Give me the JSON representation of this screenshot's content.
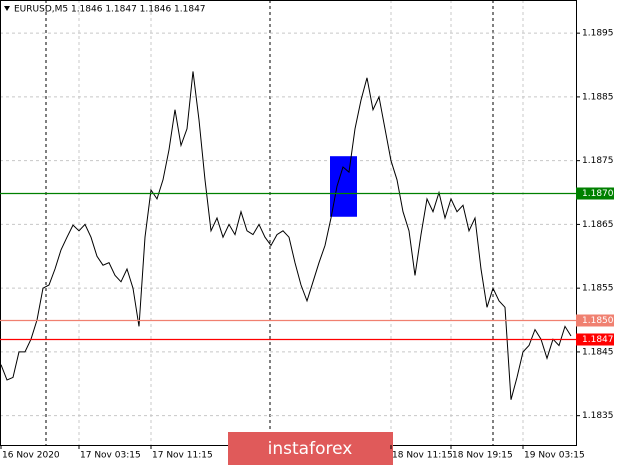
{
  "chart_data": {
    "type": "line",
    "title": "EURUSD,M5  1.1846 1.1847 1.1846 1.1847",
    "categories": [
      "16 Nov 2020",
      null,
      null,
      null,
      null,
      null,
      null,
      null,
      null,
      null,
      null,
      null,
      null,
      "17 Nov 03:15",
      null,
      null,
      null,
      null,
      null,
      null,
      null,
      null,
      null,
      null,
      null,
      "17 Nov 11:15",
      null,
      null,
      null,
      null,
      null,
      null,
      null,
      null,
      null,
      null,
      null,
      null,
      null,
      null,
      null,
      null,
      null,
      null,
      null,
      null,
      null,
      null,
      null,
      null,
      null,
      null,
      null,
      null,
      null,
      null,
      null,
      null,
      null,
      null,
      null,
      null,
      null,
      null,
      null,
      "18 Nov 11:15",
      null,
      null,
      null,
      null,
      null,
      null,
      null,
      null,
      null,
      "18 Nov 19:15",
      null,
      null,
      null,
      null,
      null,
      null,
      null,
      null,
      null,
      null,
      null,
      "19 Nov 03:15",
      null,
      null,
      null,
      null,
      null,
      null,
      null,
      null
    ],
    "series": [
      {
        "name": "EURUSD,M5",
        "color": "#000000",
        "values": [
          1.1843,
          1.18406,
          1.1841,
          1.1845,
          1.1845,
          1.1847,
          1.185,
          1.1855,
          1.18555,
          1.1858,
          1.1861,
          1.1863,
          1.18649,
          1.1864,
          1.1865,
          1.1863,
          1.186,
          1.18586,
          1.1859,
          1.1857,
          1.1856,
          1.1858,
          1.1855,
          1.1849,
          1.1863,
          1.18704,
          1.1869,
          1.1872,
          1.18767,
          1.1883,
          1.18774,
          1.188,
          1.1889,
          1.18814,
          1.1872,
          1.1864,
          1.1866,
          1.1863,
          1.1865,
          1.18634,
          1.1867,
          1.1864,
          1.18634,
          1.1865,
          1.1863,
          1.18617,
          1.18634,
          1.1864,
          1.1863,
          1.1859,
          1.18555,
          1.1853,
          1.1856,
          1.1859,
          1.18617,
          1.1866,
          1.1871,
          1.1874,
          1.18732,
          1.188,
          1.18845,
          1.1888,
          1.1883,
          1.1885,
          1.188,
          1.1875,
          1.1872,
          1.1867,
          1.1864,
          1.1857,
          1.18634,
          1.1869,
          1.1867,
          1.187,
          1.1866,
          1.1869,
          1.1867,
          1.1868,
          1.1864,
          1.1866,
          1.1858,
          1.1852,
          1.1855,
          1.1853,
          1.1852,
          1.18375,
          1.1841,
          1.1845,
          1.1846,
          1.18485,
          1.1847,
          1.1844,
          1.1847,
          1.1846,
          1.1849,
          1.18475
        ]
      }
    ],
    "ylim": [
      1.18304,
      1.19002
    ],
    "yticks": [
      1.1835,
      1.1845,
      1.1855,
      1.1865,
      1.1875,
      1.1885,
      1.1895
    ],
    "grid": true,
    "levels": [
      {
        "value": 1.187,
        "label": "1.1870",
        "color": "#008000"
      },
      {
        "value": 1.185,
        "label": "1.1850",
        "color": "#f08070"
      },
      {
        "value": 1.1847,
        "label": "1.1847",
        "color": "#ff0000"
      }
    ],
    "zone": {
      "high": 1.18757,
      "low": 1.18662,
      "color": "#0000ff"
    },
    "watermark": "instaforex"
  }
}
